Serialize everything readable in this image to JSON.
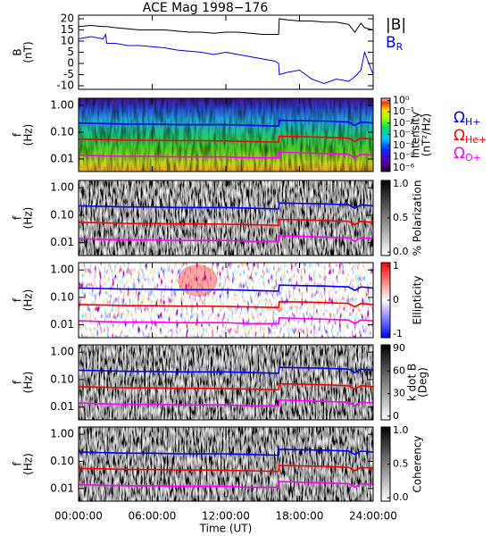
{
  "chart_data": [
    {
      "type": "line",
      "title": "ACE Mag 1998−176",
      "ylabel": [
        "B",
        "(nT)"
      ],
      "x": [
        0,
        1,
        2,
        2.2,
        2.3,
        3,
        4,
        5,
        6,
        7,
        8,
        9,
        10,
        11,
        12,
        13,
        14,
        15,
        16,
        16.3,
        16.35,
        17,
        18,
        19,
        20,
        21,
        22,
        22.5,
        23,
        23.3,
        24
      ],
      "series": [
        {
          "name": "|B|",
          "color": "#000000",
          "values": [
            16.5,
            17,
            16.5,
            16.5,
            16.5,
            16,
            15.5,
            15,
            15,
            15,
            14.5,
            14,
            14,
            13.5,
            14,
            14,
            13.5,
            13,
            13,
            13,
            20,
            19.5,
            19,
            19,
            18.5,
            18.5,
            17.5,
            14,
            18,
            16,
            15
          ]
        },
        {
          "name": "B",
          "subscript": "R",
          "color": "#0000ff",
          "values": [
            11,
            12,
            11,
            13,
            9,
            9,
            8,
            8,
            7.5,
            7,
            6,
            5.5,
            5,
            4,
            5,
            4,
            3,
            2,
            1,
            0,
            -5,
            -4,
            -3,
            -7,
            -9,
            -7,
            -8,
            -6,
            -3,
            5,
            -5
          ]
        }
      ],
      "ylim": [
        -11.6,
        21.6
      ],
      "yticks": [
        20,
        15,
        10,
        5,
        0,
        -5,
        -10
      ]
    },
    {
      "type": "spectrogram",
      "ylabel": [
        "f",
        "(Hz)"
      ],
      "log_y": true,
      "ylim": [
        0.0034,
        1.85
      ],
      "yticks": [
        {
          "value": 1,
          "label": "1.00"
        },
        {
          "value": 0.1,
          "label": "0.10"
        },
        {
          "value": 0.01,
          "label": "0.01"
        }
      ],
      "colorbar": {
        "label": [
          "Intensity",
          "(nT²/Hz)"
        ],
        "colormap": "rainbow",
        "log": true,
        "lim": [
          5e-07,
          1.6
        ],
        "ticks": [
          {
            "value": 1,
            "label": "10⁰"
          },
          {
            "value": 0.1,
            "label": "10⁻¹"
          },
          {
            "value": 0.01,
            "label": "10⁻²"
          },
          {
            "value": 0.001,
            "label": "10⁻³"
          },
          {
            "value": 0.0001,
            "label": "10⁻⁴"
          },
          {
            "value": 1e-05,
            "label": "10⁻⁵"
          },
          {
            "value": 1e-06,
            "label": "10⁻⁶"
          }
        ]
      },
      "x": [
        0,
        2,
        4,
        6,
        8,
        10,
        12,
        14,
        16,
        16.3,
        16.35,
        18,
        20,
        22,
        22.5,
        23,
        24
      ],
      "series": [
        {
          "name": "Ω",
          "subscript": "H+",
          "color": "#0000ff",
          "values": [
            0.22,
            0.21,
            0.2,
            0.2,
            0.19,
            0.19,
            0.19,
            0.18,
            0.17,
            0.17,
            0.28,
            0.27,
            0.26,
            0.24,
            0.18,
            0.24,
            0.22
          ]
        },
        {
          "name": "Ω",
          "subscript": "He+",
          "color": "#ff0000",
          "values": [
            0.055,
            0.053,
            0.05,
            0.05,
            0.048,
            0.048,
            0.047,
            0.045,
            0.043,
            0.043,
            0.07,
            0.068,
            0.065,
            0.06,
            0.045,
            0.06,
            0.055
          ]
        },
        {
          "name": "Ω",
          "subscript": "O+",
          "color": "#ff00ff",
          "values": [
            0.014,
            0.013,
            0.0125,
            0.0125,
            0.012,
            0.012,
            0.012,
            0.011,
            0.011,
            0.011,
            0.018,
            0.017,
            0.016,
            0.015,
            0.011,
            0.015,
            0.014
          ]
        }
      ]
    },
    {
      "type": "spectrogram",
      "ylabel": [
        "f",
        "(Hz)"
      ],
      "log_y": true,
      "ylim": [
        0.0034,
        1.85
      ],
      "yticks": [
        {
          "value": 1,
          "label": "1.00"
        },
        {
          "value": 0.1,
          "label": "0.10"
        },
        {
          "value": 0.01,
          "label": "0.01"
        }
      ],
      "colorbar": {
        "label": [
          "% Polarization"
        ],
        "colormap": "gray",
        "lim": [
          -0.05,
          1.05
        ],
        "ticks": [
          {
            "value": 0,
            "label": "0.0"
          },
          {
            "value": 0.5,
            "label": "0.5"
          },
          {
            "value": 1,
            "label": "1.0"
          }
        ]
      }
    },
    {
      "type": "spectrogram",
      "ylabel": [
        "f",
        "(Hz)"
      ],
      "log_y": true,
      "ylim": [
        0.0034,
        1.85
      ],
      "yticks": [
        {
          "value": 1,
          "label": "1.00"
        },
        {
          "value": 0.1,
          "label": "0.10"
        },
        {
          "value": 0.01,
          "label": "0.01"
        }
      ],
      "colorbar": {
        "label": [
          "Ellipticity"
        ],
        "colormap": "red-blue",
        "lim": [
          -1.1,
          1.1
        ],
        "ticks": [
          1,
          0,
          -1
        ]
      }
    },
    {
      "type": "spectrogram",
      "ylabel": [
        "f",
        "(Hz)"
      ],
      "log_y": true,
      "ylim": [
        0.0034,
        1.85
      ],
      "yticks": [
        {
          "value": 1,
          "label": "1.00"
        },
        {
          "value": 0.1,
          "label": "0.10"
        },
        {
          "value": 0.01,
          "label": "0.01"
        }
      ],
      "colorbar": {
        "label": [
          "k dot B",
          "(Deg)"
        ],
        "colormap": "gray",
        "lim": [
          -5,
          95
        ],
        "ticks": [
          90,
          60,
          30,
          0
        ]
      }
    },
    {
      "type": "spectrogram",
      "ylabel": [
        "f",
        "(Hz)"
      ],
      "log_y": true,
      "ylim": [
        0.0034,
        1.85
      ],
      "yticks": [
        {
          "value": 1,
          "label": "1.00"
        },
        {
          "value": 0.1,
          "label": "0.10"
        },
        {
          "value": 0.01,
          "label": "0.01"
        }
      ],
      "colorbar": {
        "label": [
          "Coherency"
        ],
        "colormap": "gray",
        "lim": [
          -0.05,
          1.05
        ],
        "ticks": [
          {
            "value": 0,
            "label": "0.0"
          },
          {
            "value": 0.5,
            "label": "0.5"
          },
          {
            "value": 1,
            "label": "1.0"
          }
        ]
      },
      "xlabel": "Time (UT)",
      "xlim": [
        0,
        24
      ],
      "xticks": [
        {
          "value": 0,
          "label": "00:00:00"
        },
        {
          "value": 6,
          "label": "06:00:00"
        },
        {
          "value": 12,
          "label": "12:00:00"
        },
        {
          "value": 18,
          "label": "18:00:00"
        },
        {
          "value": 24,
          "label": "24:00:00"
        }
      ]
    }
  ]
}
